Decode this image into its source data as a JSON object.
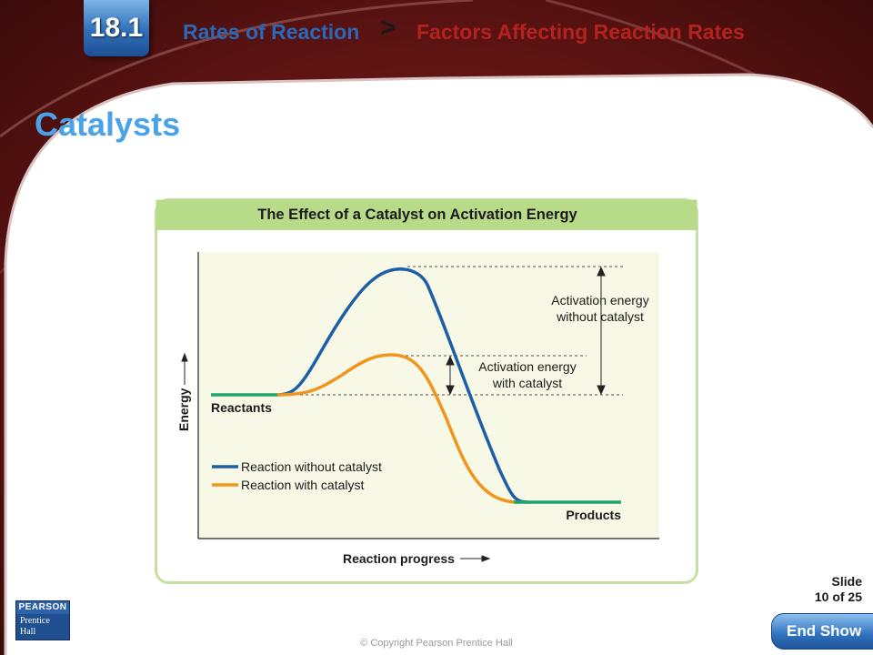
{
  "header": {
    "section_number": "18.1",
    "chapter": "Rates of Reaction",
    "separator": ">",
    "section_title": "Factors Affecting Reaction Rates"
  },
  "slide_title": "Catalysts",
  "figure": {
    "title": "The Effect of a Catalyst on Activation Energy",
    "y_axis_label": "Energy",
    "x_axis_label": "Reaction progress",
    "reactants_label": "Reactants",
    "products_label": "Products",
    "annotation_without": [
      "Activation energy",
      "without catalyst"
    ],
    "annotation_with": [
      "Activation energy",
      "with catalyst"
    ],
    "legend": [
      {
        "label": "Reaction without catalyst",
        "color": "#1d5ea8"
      },
      {
        "label": "Reaction with catalyst",
        "color": "#f0961e"
      }
    ],
    "colors": {
      "reactant_level": "#1fa36a",
      "plot_background": "#f7f8e5",
      "title_bar": "#b8db8a",
      "frame": "#c5e0a2"
    }
  },
  "footer": {
    "slide_label": "Slide",
    "slide_count": "10 of 25",
    "end_show": "End Show",
    "copyright": "© Copyright Pearson Prentice Hall",
    "logo_top": "PEARSON",
    "logo_bottom": [
      "Prentice",
      "Hall"
    ]
  }
}
